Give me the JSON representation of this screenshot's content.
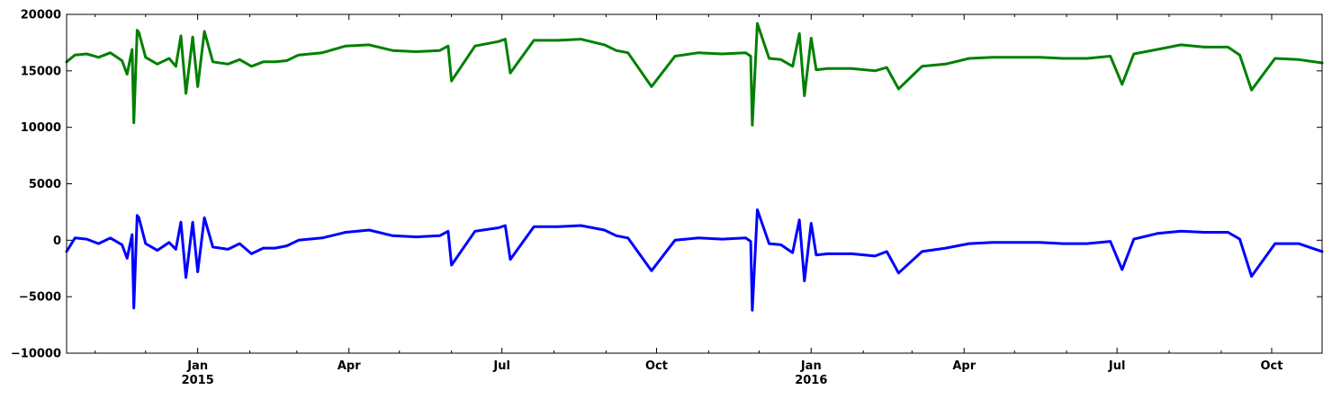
{
  "chart_data": {
    "type": "line",
    "title": "",
    "xlabel": "",
    "ylabel": "",
    "x_range": [
      "2014-10-15",
      "2016-10-31"
    ],
    "ylim": [
      -10000,
      20000
    ],
    "yticks": [
      -10000,
      -5000,
      0,
      5000,
      10000,
      15000,
      20000
    ],
    "ytick_labels": [
      "−10000",
      "−5000",
      "0",
      "5000",
      "10000",
      "15000",
      "20000"
    ],
    "xticks_major": [
      {
        "date": "2015-01-01",
        "label": "Jan",
        "sublabel": "2015"
      },
      {
        "date": "2015-04-01",
        "label": "Apr",
        "sublabel": ""
      },
      {
        "date": "2015-07-01",
        "label": "Jul",
        "sublabel": ""
      },
      {
        "date": "2015-10-01",
        "label": "Oct",
        "sublabel": ""
      },
      {
        "date": "2016-01-01",
        "label": "Jan",
        "sublabel": "2016"
      },
      {
        "date": "2016-04-01",
        "label": "Apr",
        "sublabel": ""
      },
      {
        "date": "2016-07-01",
        "label": "Jul",
        "sublabel": ""
      },
      {
        "date": "2016-10-01",
        "label": "Oct",
        "sublabel": ""
      }
    ],
    "xticks_minor": [
      "2014-11-01",
      "2014-12-01",
      "2015-02-01",
      "2015-03-01",
      "2015-05-01",
      "2015-06-01",
      "2015-08-01",
      "2015-09-01",
      "2015-11-01",
      "2015-12-01",
      "2016-02-01",
      "2016-03-01",
      "2016-05-01",
      "2016-06-01",
      "2016-08-01",
      "2016-09-01"
    ],
    "grid": false,
    "legend": "none",
    "series": [
      {
        "color": "#008000",
        "x": [
          "2014-10-15",
          "2014-10-20",
          "2014-10-27",
          "2014-11-03",
          "2014-11-10",
          "2014-11-17",
          "2014-11-20",
          "2014-11-23",
          "2014-11-24",
          "2014-11-26",
          "2014-11-27",
          "2014-12-01",
          "2014-12-08",
          "2014-12-15",
          "2014-12-19",
          "2014-12-22",
          "2014-12-25",
          "2014-12-29",
          "2015-01-01",
          "2015-01-05",
          "2015-01-10",
          "2015-01-19",
          "2015-01-26",
          "2015-02-02",
          "2015-02-09",
          "2015-02-16",
          "2015-02-23",
          "2015-03-02",
          "2015-03-16",
          "2015-03-30",
          "2015-04-13",
          "2015-04-27",
          "2015-05-11",
          "2015-05-25",
          "2015-05-30",
          "2015-06-01",
          "2015-06-15",
          "2015-06-29",
          "2015-07-03",
          "2015-07-06",
          "2015-07-20",
          "2015-08-03",
          "2015-08-17",
          "2015-08-31",
          "2015-09-07",
          "2015-09-14",
          "2015-09-28",
          "2015-10-12",
          "2015-10-26",
          "2015-11-09",
          "2015-11-23",
          "2015-11-26",
          "2015-11-27",
          "2015-11-30",
          "2015-12-07",
          "2015-12-14",
          "2015-12-21",
          "2015-12-25",
          "2015-12-28",
          "2016-01-01",
          "2016-01-04",
          "2016-01-11",
          "2016-01-25",
          "2016-02-08",
          "2016-02-15",
          "2016-02-22",
          "2016-03-07",
          "2016-03-21",
          "2016-04-04",
          "2016-04-18",
          "2016-05-02",
          "2016-05-16",
          "2016-05-30",
          "2016-06-13",
          "2016-06-27",
          "2016-07-04",
          "2016-07-11",
          "2016-07-25",
          "2016-08-08",
          "2016-08-22",
          "2016-09-05",
          "2016-09-12",
          "2016-09-19",
          "2016-10-03",
          "2016-10-17",
          "2016-10-31"
        ],
        "y": [
          15800,
          16400,
          16500,
          16200,
          16600,
          15900,
          14700,
          16900,
          10400,
          18600,
          18400,
          16200,
          15600,
          16100,
          15400,
          18100,
          13000,
          18000,
          13600,
          18500,
          15800,
          15600,
          16000,
          15400,
          15800,
          15800,
          15900,
          16400,
          16600,
          17200,
          17300,
          16800,
          16700,
          16800,
          17200,
          14100,
          17200,
          17600,
          17800,
          14800,
          17700,
          17700,
          17800,
          17300,
          16800,
          16600,
          13600,
          16300,
          16600,
          16500,
          16600,
          16300,
          10200,
          19200,
          16100,
          16000,
          15400,
          18300,
          12800,
          17900,
          15100,
          15200,
          15200,
          15000,
          15300,
          13400,
          15400,
          15600,
          16100,
          16200,
          16200,
          16200,
          16100,
          16100,
          16300,
          13800,
          16500,
          16900,
          17300,
          17100,
          17100,
          16400,
          13300,
          16100,
          16000,
          15700
        ]
      },
      {
        "color": "#0000ff",
        "x": [
          "2014-10-15",
          "2014-10-20",
          "2014-10-27",
          "2014-11-03",
          "2014-11-10",
          "2014-11-17",
          "2014-11-20",
          "2014-11-23",
          "2014-11-24",
          "2014-11-26",
          "2014-11-27",
          "2014-12-01",
          "2014-12-08",
          "2014-12-15",
          "2014-12-19",
          "2014-12-22",
          "2014-12-25",
          "2014-12-29",
          "2015-01-01",
          "2015-01-05",
          "2015-01-10",
          "2015-01-19",
          "2015-01-26",
          "2015-02-02",
          "2015-02-09",
          "2015-02-16",
          "2015-02-23",
          "2015-03-02",
          "2015-03-16",
          "2015-03-30",
          "2015-04-13",
          "2015-04-27",
          "2015-05-11",
          "2015-05-25",
          "2015-05-30",
          "2015-06-01",
          "2015-06-15",
          "2015-06-29",
          "2015-07-03",
          "2015-07-06",
          "2015-07-20",
          "2015-08-03",
          "2015-08-17",
          "2015-08-31",
          "2015-09-07",
          "2015-09-14",
          "2015-09-28",
          "2015-10-12",
          "2015-10-26",
          "2015-11-09",
          "2015-11-23",
          "2015-11-26",
          "2015-11-27",
          "2015-11-30",
          "2015-12-07",
          "2015-12-14",
          "2015-12-21",
          "2015-12-25",
          "2015-12-28",
          "2016-01-01",
          "2016-01-04",
          "2016-01-11",
          "2016-01-25",
          "2016-02-08",
          "2016-02-15",
          "2016-02-22",
          "2016-03-07",
          "2016-03-21",
          "2016-04-04",
          "2016-04-18",
          "2016-05-02",
          "2016-05-16",
          "2016-05-30",
          "2016-06-13",
          "2016-06-27",
          "2016-07-04",
          "2016-07-11",
          "2016-07-25",
          "2016-08-08",
          "2016-08-22",
          "2016-09-05",
          "2016-09-12",
          "2016-09-19",
          "2016-10-03",
          "2016-10-17",
          "2016-10-31"
        ],
        "y": [
          -1000,
          200,
          100,
          -300,
          200,
          -400,
          -1600,
          500,
          -6000,
          2200,
          2000,
          -300,
          -900,
          -200,
          -800,
          1600,
          -3300,
          1600,
          -2800,
          2000,
          -600,
          -800,
          -300,
          -1200,
          -700,
          -700,
          -500,
          0,
          200,
          700,
          900,
          400,
          300,
          400,
          800,
          -2200,
          800,
          1100,
          1300,
          -1700,
          1200,
          1200,
          1300,
          900,
          400,
          200,
          -2700,
          0,
          200,
          100,
          200,
          -100,
          -6200,
          2700,
          -300,
          -400,
          -1100,
          1800,
          -3600,
          1500,
          -1300,
          -1200,
          -1200,
          -1400,
          -1000,
          -2900,
          -1000,
          -700,
          -300,
          -200,
          -200,
          -200,
          -300,
          -300,
          -100,
          -2600,
          100,
          600,
          800,
          700,
          700,
          100,
          -3200,
          -300,
          -300,
          -1000
        ]
      }
    ]
  }
}
